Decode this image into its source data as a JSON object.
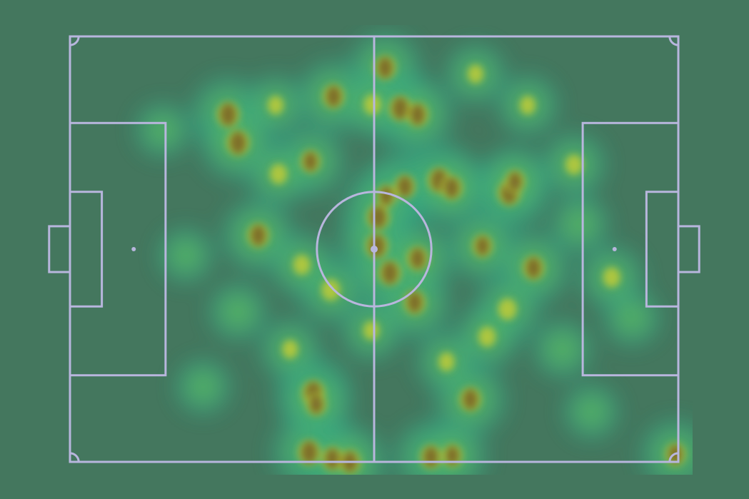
{
  "chart_data": {
    "type": "heatmap",
    "title": "",
    "xlabel": "",
    "ylabel": "",
    "pitch": {
      "length_m": 105,
      "width_m": 68
    },
    "xlim": [
      0,
      105
    ],
    "ylim": [
      0,
      68
    ],
    "legend": "none",
    "grid": false,
    "colormap": [
      "#3c7b8a",
      "#2f9aa0",
      "#2fb890",
      "#5cc864",
      "#b7c93a",
      "#7c6b2c",
      "#6a5c2c"
    ],
    "hotspots": [
      [
        27.3,
        12.5,
        1.0
      ],
      [
        29.0,
        17.0,
        1.0
      ],
      [
        45.5,
        9.6,
        0.9
      ],
      [
        54.4,
        5.0,
        0.9
      ],
      [
        57.0,
        11.5,
        1.0
      ],
      [
        60.0,
        12.5,
        0.9
      ],
      [
        52.2,
        10.9,
        0.6
      ],
      [
        57.8,
        24.0,
        0.9
      ],
      [
        54.6,
        25.5,
        0.8
      ],
      [
        53.2,
        28.9,
        1.0
      ],
      [
        63.7,
        23.0,
        1.0
      ],
      [
        65.9,
        24.2,
        0.9
      ],
      [
        75.8,
        25.0,
        1.0
      ],
      [
        76.8,
        23.2,
        0.8
      ],
      [
        32.5,
        31.8,
        0.9
      ],
      [
        53.0,
        33.5,
        1.0
      ],
      [
        55.2,
        37.8,
        1.0
      ],
      [
        59.5,
        42.5,
        0.9
      ],
      [
        60.0,
        35.5,
        0.9
      ],
      [
        71.2,
        33.5,
        0.8
      ],
      [
        80.0,
        37.0,
        0.9
      ],
      [
        75.5,
        43.6,
        0.7
      ],
      [
        45.0,
        40.5,
        0.7
      ],
      [
        40.0,
        36.5,
        0.6
      ],
      [
        42.0,
        57.0,
        1.0
      ],
      [
        42.5,
        58.8,
        0.8
      ],
      [
        69.1,
        58.0,
        0.9
      ],
      [
        41.3,
        66.5,
        1.0
      ],
      [
        45.3,
        67.5,
        0.9
      ],
      [
        48.3,
        68.0,
        0.9
      ],
      [
        62.3,
        67.2,
        0.9
      ],
      [
        66.0,
        67.0,
        0.8
      ],
      [
        104.5,
        66.8,
        0.8
      ],
      [
        41.5,
        20.0,
        0.8
      ],
      [
        36.0,
        22.0,
        0.6
      ],
      [
        87.0,
        20.5,
        0.6
      ],
      [
        93.5,
        38.5,
        0.6
      ],
      [
        72.0,
        48.0,
        0.6
      ],
      [
        52.0,
        47.0,
        0.5
      ],
      [
        35.5,
        11.0,
        0.5
      ],
      [
        79.0,
        11.0,
        0.5
      ],
      [
        70.0,
        6.0,
        0.5
      ],
      [
        29.0,
        44.0,
        0.4
      ],
      [
        85.0,
        50.0,
        0.4
      ],
      [
        20.0,
        35.0,
        0.3
      ],
      [
        97.0,
        45.0,
        0.35
      ],
      [
        88.0,
        30.0,
        0.4
      ],
      [
        16.0,
        15.0,
        0.3
      ],
      [
        23.0,
        56.0,
        0.3
      ],
      [
        90.0,
        60.0,
        0.3
      ],
      [
        38.0,
        50.0,
        0.5
      ],
      [
        65.0,
        52.0,
        0.5
      ]
    ]
  }
}
